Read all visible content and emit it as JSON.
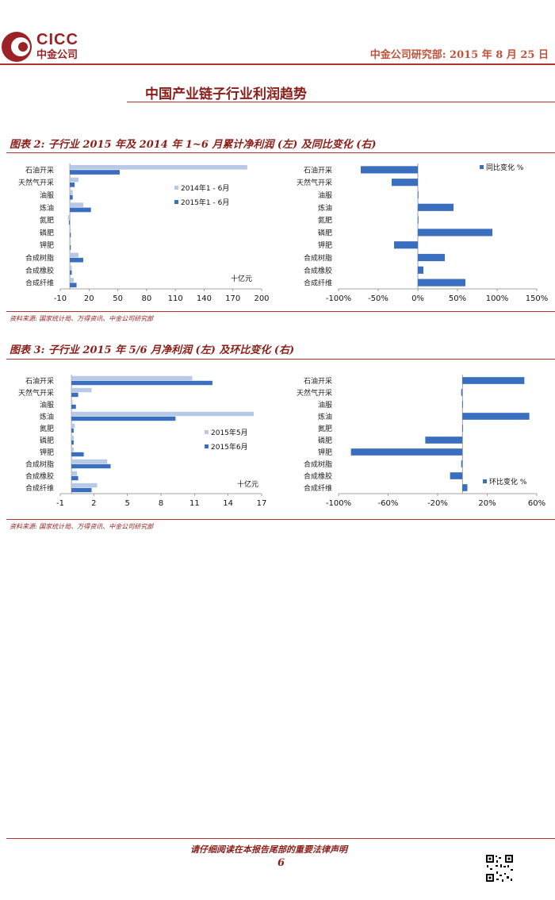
{
  "header": {
    "logo_text": "CICC",
    "logo_subtext": "中金公司",
    "right_text": "中金公司研究部: 2015 年 8 月 25 日"
  },
  "page_title": "中国产业链子行业利润趋势",
  "figure2": {
    "title": "图表 2:  子行业 2015 年及 2014 年 1~6 月累计净利润 (左) 及同比变化 (右)",
    "source": "资料来源: 国家统计局、万得资讯、中金公司研究部"
  },
  "figure3": {
    "title": "图表 3:  子行业 2015 年 5/6 月净利润 (左) 及环比变化 (右)",
    "source": "资料来源: 国家统计局、万得资讯、中金公司研究部"
  },
  "footer": {
    "note": "请仔细阅读在本报告尾部的重要法律声明",
    "page_number": "6"
  },
  "colors": {
    "light": "#b7c9e6",
    "dark": "#3a6ebf",
    "brand": "#8a1f1a",
    "rule": "#b5322e"
  },
  "chart_data": [
    {
      "id": "fig2_left",
      "type": "bar",
      "orientation": "horizontal",
      "categories": [
        "石油开采",
        "天然气开采",
        "油服",
        "炼油",
        "氮肥",
        "磷肥",
        "钾肥",
        "合成树脂",
        "合成橡胶",
        "合成纤维"
      ],
      "series": [
        {
          "name": "2014年1 - 6月",
          "values": [
            185,
            9,
            3,
            14,
            -2,
            1,
            1,
            9,
            2,
            4
          ]
        },
        {
          "name": "2015年1 - 6月",
          "values": [
            52,
            5,
            3,
            22,
            -1,
            1,
            1,
            14,
            2,
            7
          ]
        }
      ],
      "xlim": [
        -10,
        200
      ],
      "xticks": [
        -10,
        20,
        50,
        80,
        110,
        140,
        170,
        200
      ],
      "unit_label": "十亿元",
      "legend": "right"
    },
    {
      "id": "fig2_right",
      "type": "bar",
      "orientation": "horizontal",
      "categories": [
        "石油开采",
        "天然气开采",
        "油服",
        "炼油",
        "氮肥",
        "磷肥",
        "钾肥",
        "合成树脂",
        "合成橡胶",
        "合成纤维"
      ],
      "series": [
        {
          "name": "同比变化 %",
          "values": [
            -72,
            -33,
            0,
            45,
            0,
            94,
            -30,
            34,
            7,
            60
          ]
        }
      ],
      "xlim": [
        -100,
        150
      ],
      "xticks": [
        "-100%",
        "-50%",
        "0%",
        "50%",
        "100%",
        "150%"
      ],
      "legend": "top-right"
    },
    {
      "id": "fig3_left",
      "type": "bar",
      "orientation": "horizontal",
      "categories": [
        "石油开采",
        "天然气开采",
        "油服",
        "炼油",
        "氮肥",
        "磷肥",
        "钾肥",
        "合成树脂",
        "合成橡胶",
        "合成纤维"
      ],
      "series": [
        {
          "name": "2015年5月",
          "values": [
            10.8,
            1.8,
            0.1,
            16.3,
            0.3,
            0.2,
            0.2,
            3.2,
            0.5,
            2.3
          ]
        },
        {
          "name": "2015年6月",
          "values": [
            12.6,
            0.6,
            0.4,
            9.3,
            0.2,
            0.2,
            1.1,
            3.5,
            0.6,
            1.8
          ]
        }
      ],
      "xlim": [
        -1,
        17
      ],
      "xticks": [
        -1,
        2,
        5,
        8,
        11,
        14,
        17
      ],
      "unit_label": "十亿元",
      "legend": "right"
    },
    {
      "id": "fig3_right",
      "type": "bar",
      "orientation": "horizontal",
      "categories": [
        "石油开采",
        "天然气开采",
        "油服",
        "炼油",
        "氮肥",
        "磷肥",
        "钾肥",
        "合成树脂",
        "合成橡胶",
        "合成纤维"
      ],
      "series": [
        {
          "name": "环比变化 %",
          "values": [
            50,
            -1,
            0,
            54,
            0,
            -30,
            -90,
            -1,
            -10,
            4
          ]
        }
      ],
      "xlim": [
        -100,
        60
      ],
      "xticks": [
        "-100%",
        "-60%",
        "-20%",
        "20%",
        "60%"
      ],
      "legend": "bottom-right"
    }
  ]
}
